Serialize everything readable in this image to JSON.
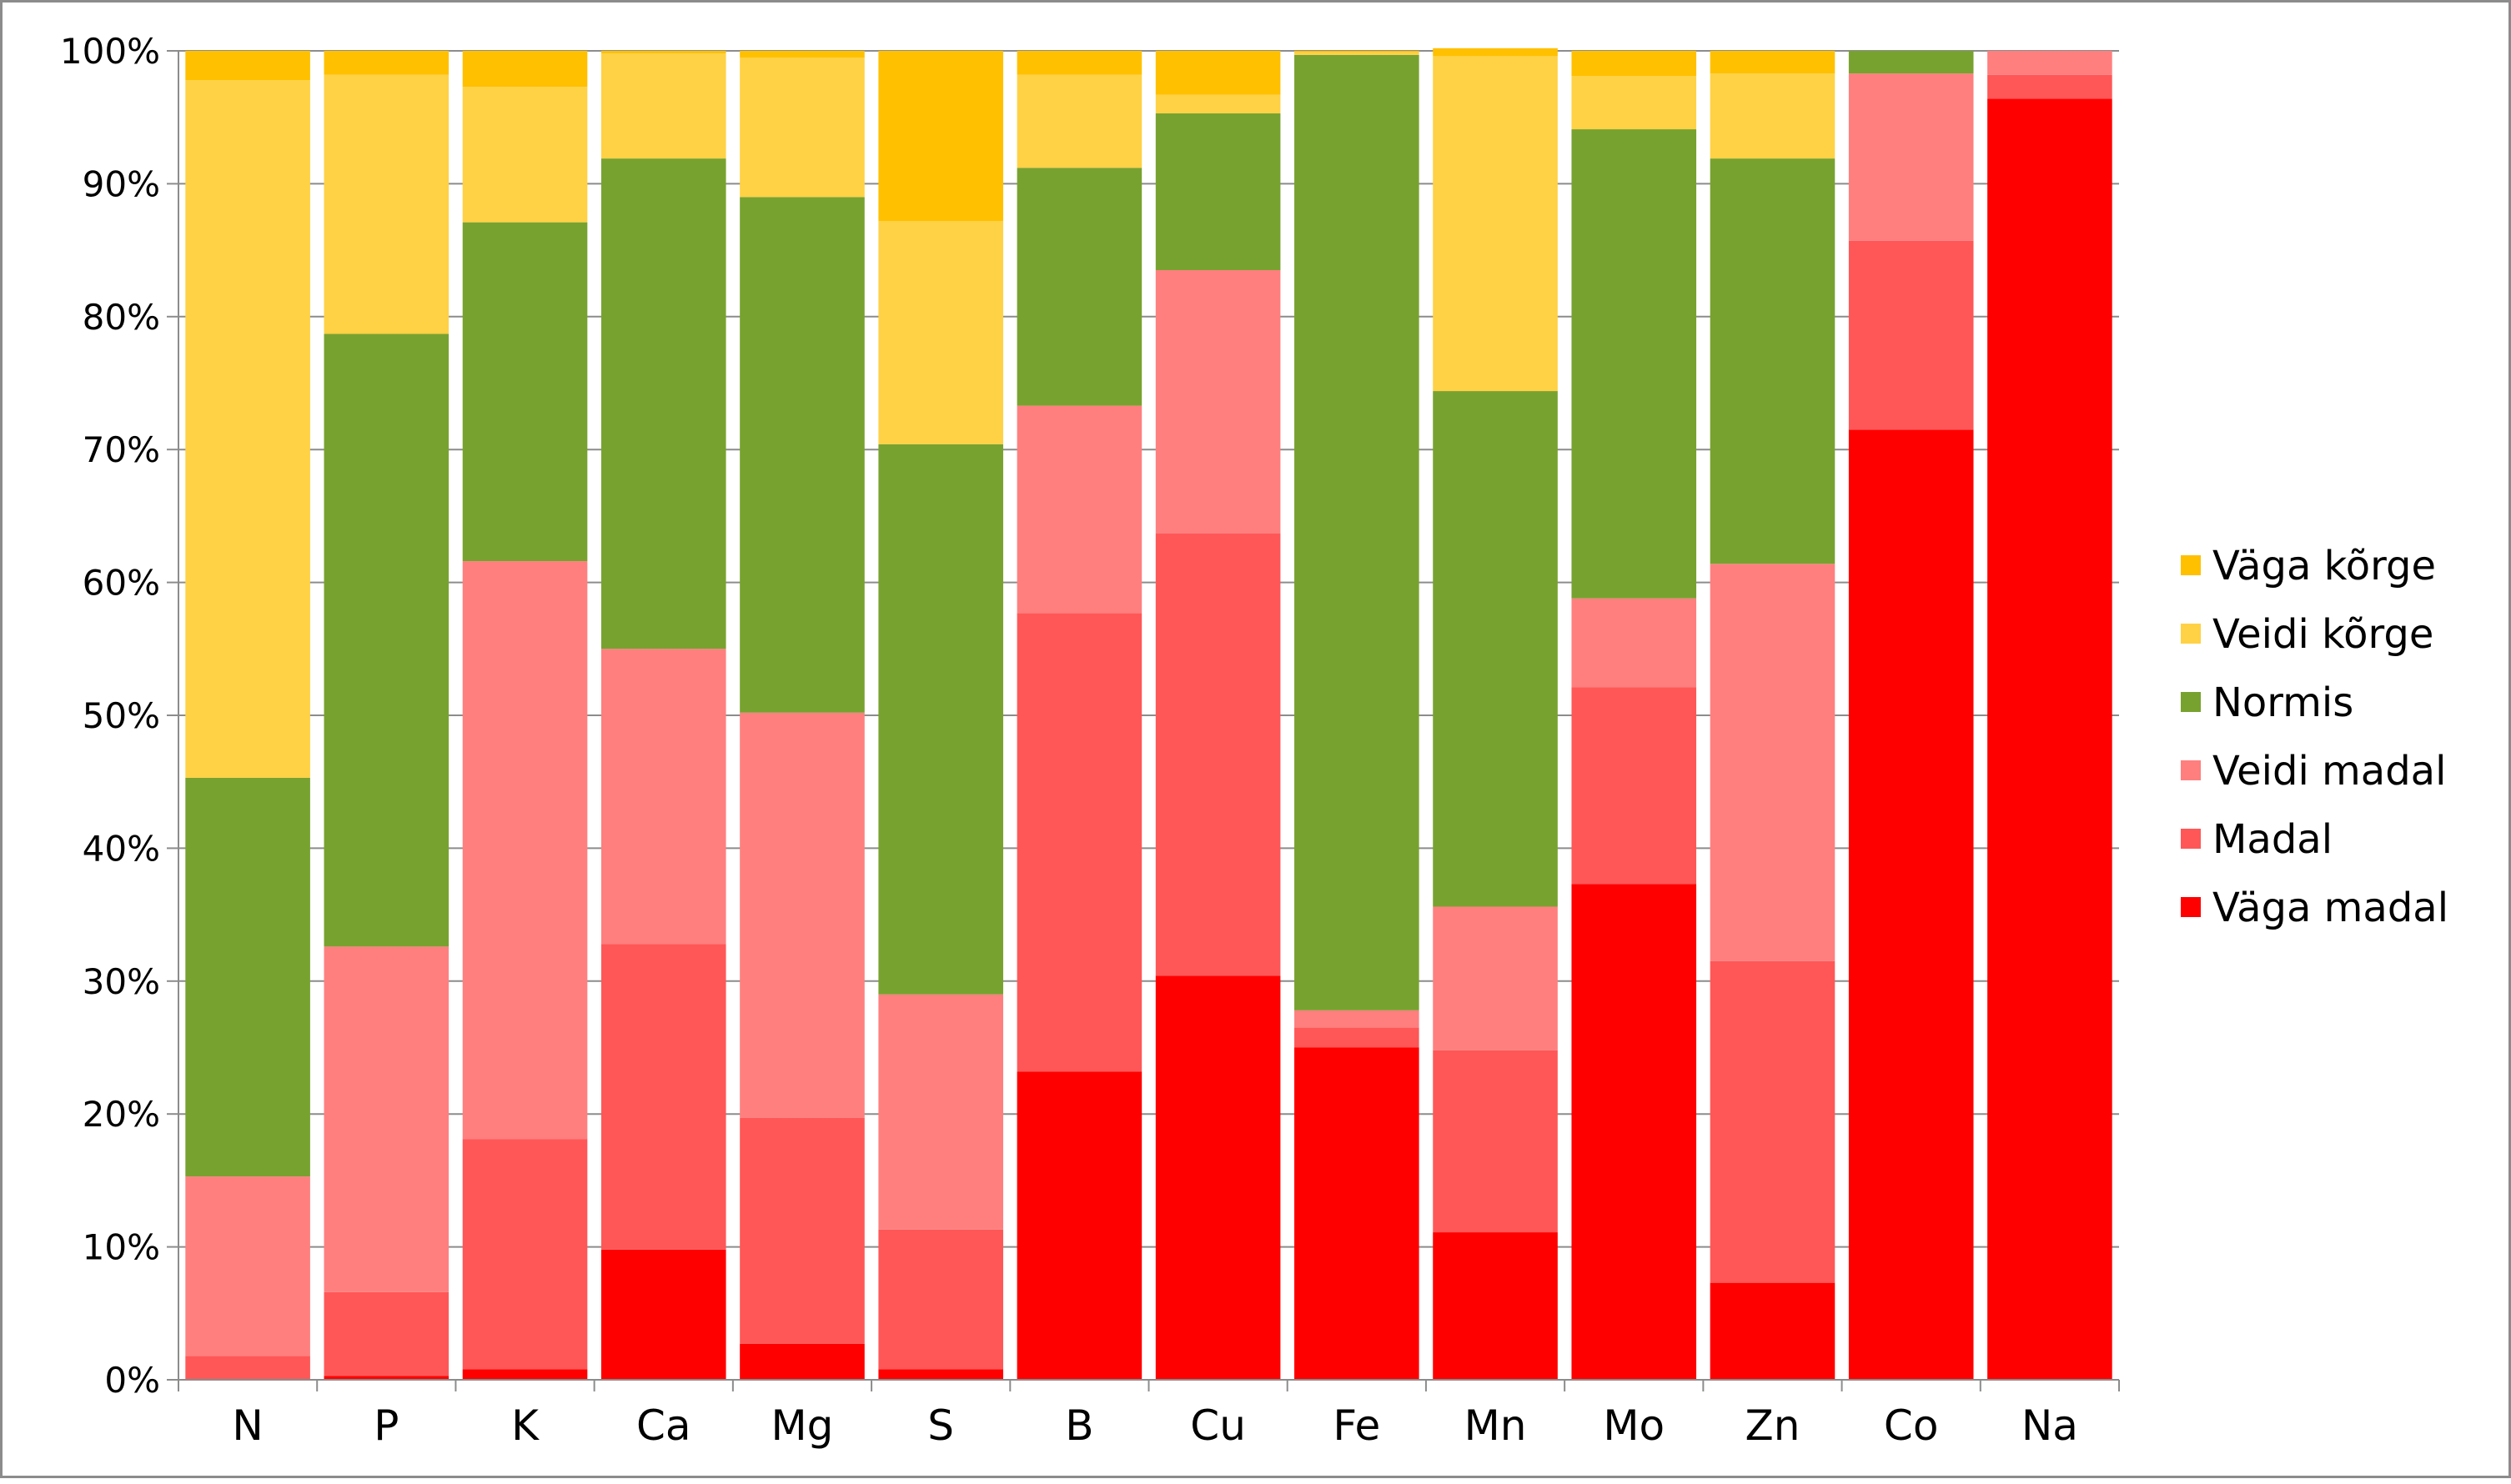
{
  "chart_data": {
    "type": "bar",
    "stacked": true,
    "percent_stacked": true,
    "categories": [
      "N",
      "P",
      "K",
      "Ca",
      "Mg",
      "S",
      "B",
      "Cu",
      "Fe",
      "Mn",
      "Mo",
      "Zn",
      "Co",
      "Na"
    ],
    "ylim": [
      0,
      100
    ],
    "yticks": [
      "0%",
      "10%",
      "20%",
      "30%",
      "40%",
      "50%",
      "60%",
      "70%",
      "80%",
      "90%",
      "100%"
    ],
    "grid": true,
    "legend": "right",
    "series": [
      {
        "name": "Väga madal",
        "color": "#FF0000",
        "values": [
          0,
          0.3,
          0.8,
          9.8,
          2.7,
          0.8,
          23.2,
          30.4,
          25.0,
          11.1,
          37.3,
          7.3,
          71.5,
          96.4
        ]
      },
      {
        "name": "Madal",
        "color": "#FF5757",
        "values": [
          1.8,
          6.3,
          17.3,
          23.0,
          17.0,
          10.5,
          34.5,
          33.3,
          1.5,
          13.7,
          14.8,
          24.2,
          14.2,
          1.8
        ]
      },
      {
        "name": "Veidi madal",
        "color": "#FF7F7F",
        "values": [
          13.5,
          26.0,
          43.5,
          22.2,
          30.5,
          17.7,
          15.6,
          19.8,
          1.3,
          10.8,
          6.7,
          29.9,
          12.6,
          1.8
        ]
      },
      {
        "name": "Normis",
        "color": "#78A22F",
        "values": [
          30.0,
          46.1,
          25.5,
          36.9,
          38.8,
          41.4,
          17.9,
          11.8,
          71.9,
          38.8,
          35.3,
          30.5,
          1.7,
          0
        ]
      },
      {
        "name": "Veidi kõrge",
        "color": "#FFD145",
        "values": [
          52.5,
          19.5,
          10.2,
          7.9,
          10.5,
          16.8,
          7.0,
          1.4,
          0.2,
          25.2,
          4.0,
          6.4,
          0,
          0
        ]
      },
      {
        "name": "Väga kõrge",
        "color": "#FFC000",
        "values": [
          2.2,
          1.8,
          2.7,
          0.2,
          0.5,
          12.8,
          1.8,
          3.3,
          0.1,
          0.6,
          1.9,
          1.7,
          0,
          0
        ]
      }
    ]
  }
}
